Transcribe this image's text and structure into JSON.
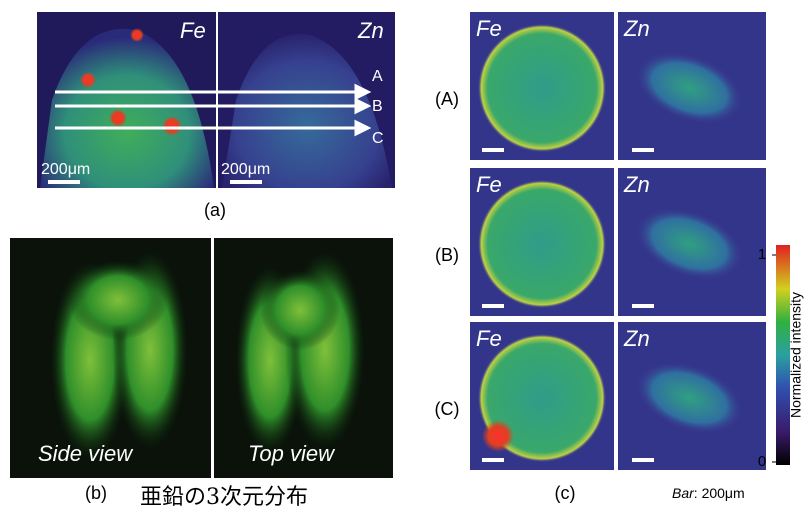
{
  "panel_a": {
    "elements": [
      "Fe",
      "Zn"
    ],
    "lines": [
      "A",
      "B",
      "C"
    ],
    "scale_bars": [
      "200μm",
      "200μm"
    ],
    "caption": "(a)"
  },
  "panel_b": {
    "views": [
      "Side view",
      "Top view"
    ],
    "caption": "(b)",
    "note": "亜鉛の3次元分布"
  },
  "panel_c": {
    "rows": [
      {
        "label": "(A)",
        "fe": "Fe",
        "zn": "Zn"
      },
      {
        "label": "(B)",
        "fe": "Fe",
        "zn": "Zn"
      },
      {
        "label": "(C)",
        "fe": "Fe",
        "zn": "Zn"
      }
    ],
    "caption": "(c)",
    "bar_prefix": "Bar",
    "bar_value": ": 200μm",
    "colorbar": {
      "label": "Normalized intensity",
      "lim": [
        0,
        1
      ],
      "ticks": [
        1,
        0
      ]
    }
  }
}
